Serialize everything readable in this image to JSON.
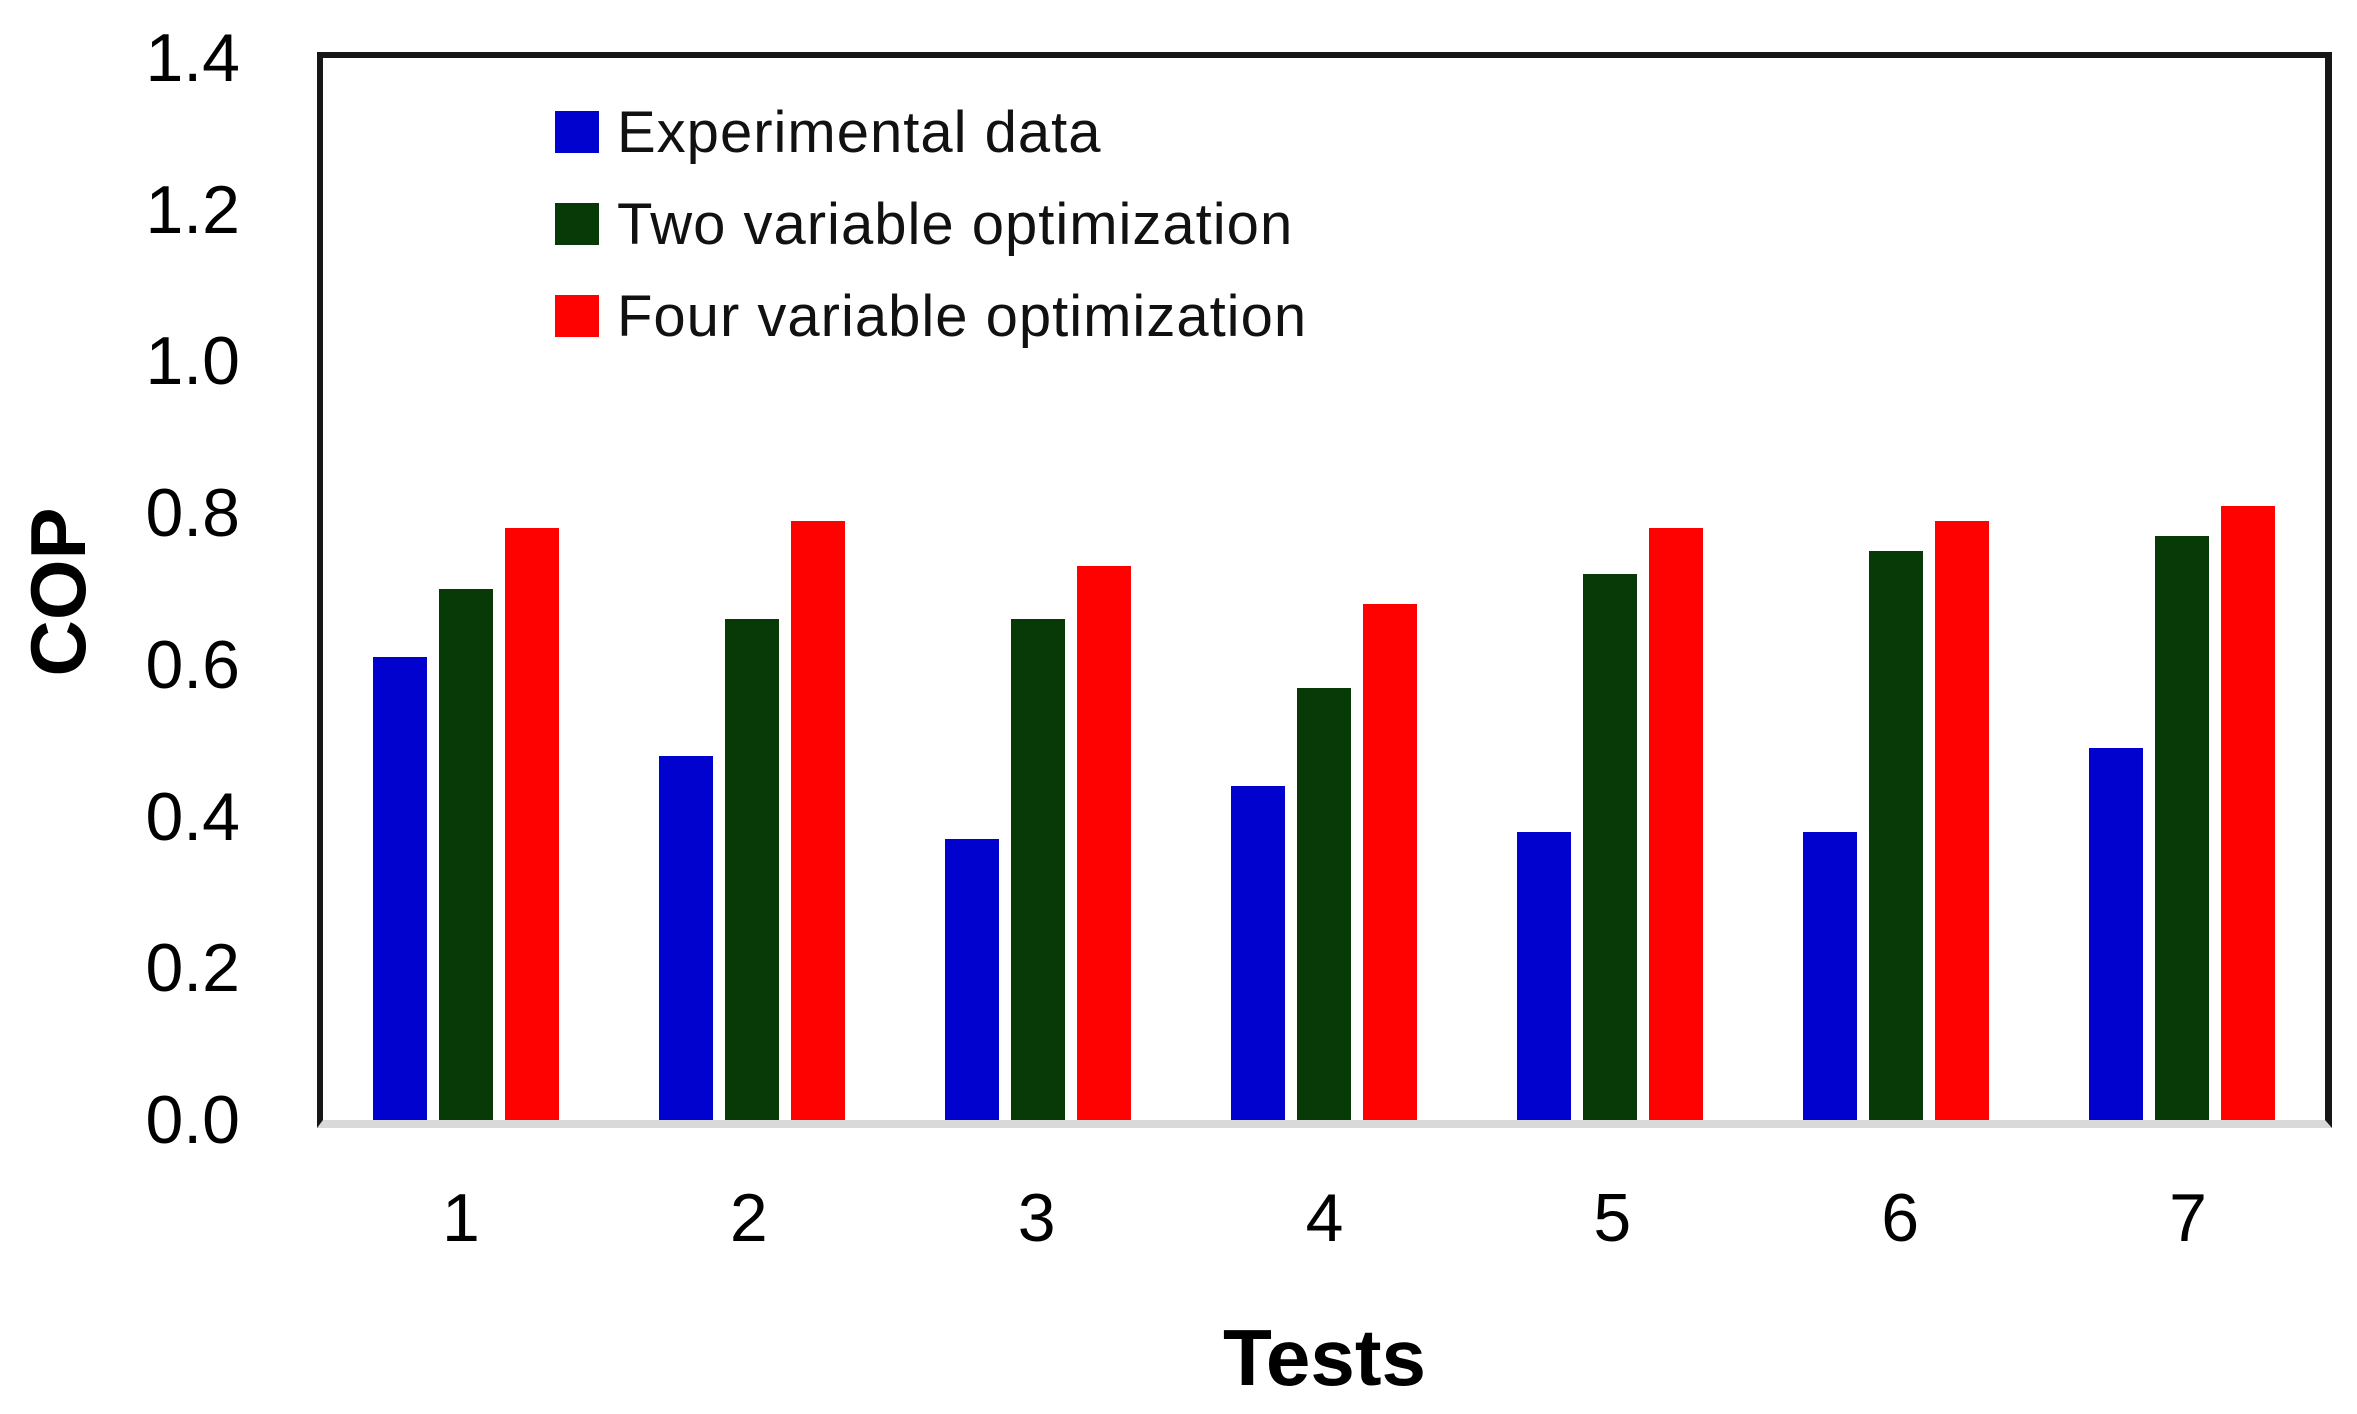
{
  "chart_data": {
    "type": "bar",
    "title": "",
    "xlabel": "Tests",
    "ylabel": "COP",
    "categories": [
      "1",
      "2",
      "3",
      "4",
      "5",
      "6",
      "7"
    ],
    "series": [
      {
        "name": "Experimental data",
        "color": "#0202cf",
        "values": [
          0.61,
          0.48,
          0.37,
          0.44,
          0.38,
          0.38,
          0.49
        ]
      },
      {
        "name": "Two variable optimization",
        "color": "#073a07",
        "values": [
          0.7,
          0.66,
          0.66,
          0.57,
          0.72,
          0.75,
          0.77
        ]
      },
      {
        "name": "Four variable optimization",
        "color": "#fe0101",
        "values": [
          0.78,
          0.79,
          0.73,
          0.68,
          0.78,
          0.79,
          0.81
        ]
      }
    ],
    "ylim": [
      0,
      1.4
    ],
    "ytick_labels": [
      "0.0",
      "0.2",
      "0.4",
      "0.6",
      "0.8",
      "1.0",
      "1.2",
      "1.4"
    ],
    "grid": false,
    "legend_position": "upper-left-inside"
  },
  "colors": {
    "frame": "#161616",
    "baseline": "#d9d9d9",
    "background": "#ffffff",
    "text": "#000000"
  }
}
